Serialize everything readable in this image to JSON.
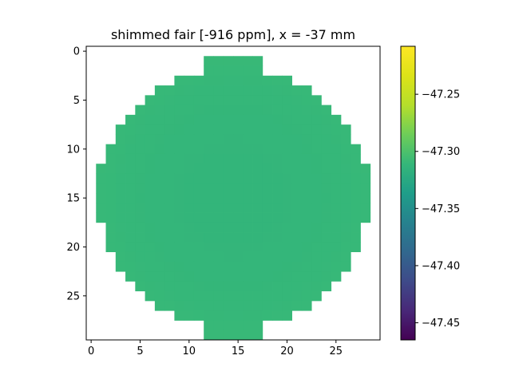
{
  "chart_data": {
    "type": "heatmap",
    "title": "shimmed fair [-916 ppm], x = -37 mm",
    "xlabel": "",
    "ylabel": "",
    "rows": 30,
    "cols": 30,
    "xlim": [
      -0.5,
      29.5
    ],
    "ylim": [
      29.5,
      -0.5
    ],
    "xticks": [
      0,
      5,
      10,
      15,
      20,
      25
    ],
    "yticks": [
      0,
      5,
      10,
      15,
      20,
      25
    ],
    "colormap": "viridis",
    "mask_row_spans": [
      null,
      [
        12,
        17
      ],
      [
        12,
        17
      ],
      [
        9,
        20
      ],
      [
        7,
        22
      ],
      [
        6,
        23
      ],
      [
        5,
        24
      ],
      [
        4,
        25
      ],
      [
        3,
        26
      ],
      [
        3,
        26
      ],
      [
        2,
        27
      ],
      [
        2,
        27
      ],
      [
        1,
        28
      ],
      [
        1,
        28
      ],
      [
        1,
        28
      ],
      [
        1,
        28
      ],
      [
        1,
        28
      ],
      [
        1,
        28
      ],
      [
        2,
        27
      ],
      [
        2,
        27
      ],
      [
        2,
        27
      ],
      [
        3,
        26
      ],
      [
        3,
        26
      ],
      [
        4,
        25
      ],
      [
        5,
        24
      ],
      [
        6,
        23
      ],
      [
        7,
        22
      ],
      [
        9,
        20
      ],
      [
        12,
        17
      ],
      [
        12,
        17
      ]
    ],
    "value_model": {
      "center": [
        14.5,
        15
      ],
      "center_value": -47.313,
      "edge_value": -47.305
    },
    "colorbar": {
      "vmin": -47.465,
      "vmax": -47.208,
      "ticks": [
        -47.25,
        -47.3,
        -47.35,
        -47.4,
        -47.45
      ],
      "tick_labels": [
        "−47.25",
        "−47.30",
        "−47.35",
        "−47.40",
        "−47.45"
      ]
    }
  }
}
